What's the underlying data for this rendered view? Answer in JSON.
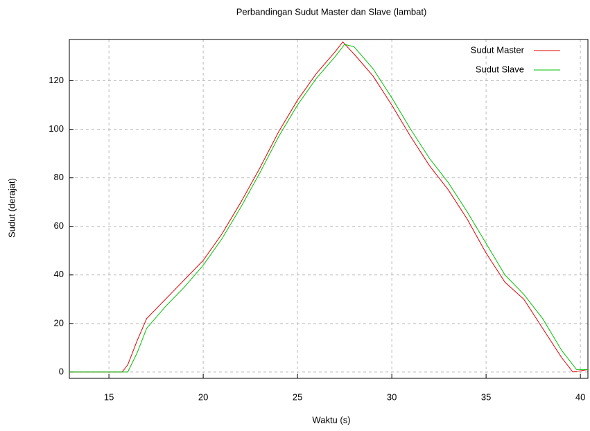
{
  "chart_data": {
    "type": "line",
    "title": "Perbandingan Sudut Master dan Slave (lambat)",
    "x_label": "Waktu (s)",
    "y_label": "Sudut (derajat)",
    "series": [
      {
        "name": "Sudut Master",
        "color": "#e00000",
        "x": [
          12.9,
          15.7,
          16.0,
          16.5,
          17,
          18,
          19,
          20,
          21,
          22,
          23,
          24,
          25,
          26,
          27,
          27.4,
          28,
          29,
          30,
          31,
          32,
          33,
          34,
          35,
          36,
          37,
          38,
          39,
          39.6,
          40.4
        ],
        "values": [
          0,
          0,
          3,
          13,
          22,
          30,
          38,
          46,
          57,
          70,
          84,
          99,
          112,
          123,
          132,
          136,
          131,
          122,
          110,
          97,
          85,
          75,
          63,
          49,
          37,
          30,
          18,
          6,
          0,
          1
        ]
      },
      {
        "name": "Sudut Slave",
        "color": "#00c000",
        "x": [
          12.9,
          16.0,
          16.5,
          17,
          18,
          19,
          20,
          21,
          22,
          23,
          24,
          25,
          26,
          27,
          27.5,
          28,
          29,
          30,
          31,
          32,
          33,
          34,
          35,
          36,
          37,
          38,
          39,
          39.8,
          40.4
        ],
        "values": [
          0,
          0,
          8,
          18,
          27,
          35,
          44,
          55,
          68,
          82,
          97,
          110,
          121,
          130,
          135,
          134,
          125,
          113,
          100,
          88,
          78,
          66,
          53,
          40,
          32,
          22,
          9,
          1,
          1
        ]
      }
    ],
    "xlim": [
      12.9,
      40.4
    ],
    "ylim": [
      -2.6,
      137
    ],
    "xticks": [
      15,
      20,
      25,
      30,
      35,
      40
    ],
    "yticks": [
      0,
      20,
      40,
      60,
      80,
      100,
      120
    ],
    "grid": true,
    "legend": "top-right"
  }
}
